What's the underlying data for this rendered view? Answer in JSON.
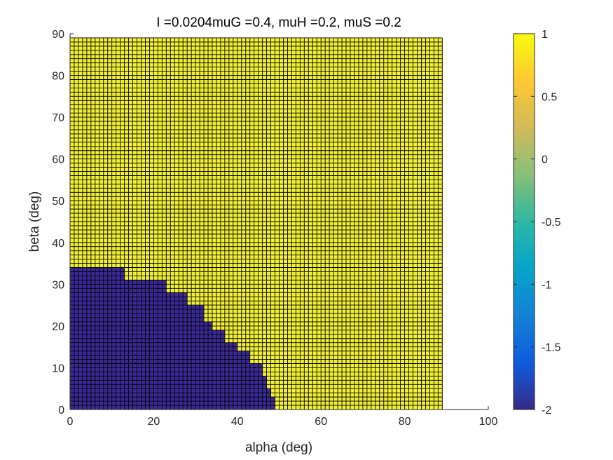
{
  "chart_data": {
    "type": "heatmap",
    "title": "I =0.0204muG =0.4, muH =0.2, muS =0.2",
    "xlabel": "alpha (deg)",
    "ylabel": "beta (deg)",
    "xlim": [
      0,
      100
    ],
    "ylim": [
      0,
      90
    ],
    "x_ticks": [
      0,
      20,
      40,
      60,
      80,
      100
    ],
    "y_ticks": [
      0,
      10,
      20,
      30,
      40,
      50,
      60,
      70,
      80,
      90
    ],
    "grid_step": 1,
    "grid_x_range": [
      0,
      89
    ],
    "grid_y_range": [
      0,
      89
    ],
    "colormap": "parula",
    "clim": [
      -2,
      1
    ],
    "colorbar_ticks": [
      1,
      0.5,
      0,
      -0.5,
      -1,
      -1.5,
      -2
    ],
    "values_present": [
      -2,
      1
    ],
    "low_region_description": "value -2 where alpha < boundary(beta); value 1 elsewhere",
    "boundary": [
      {
        "beta_from": 0,
        "beta_to": 3,
        "alpha": 49
      },
      {
        "beta_from": 3,
        "beta_to": 5,
        "alpha": 48
      },
      {
        "beta_from": 5,
        "beta_to": 8,
        "alpha": 47
      },
      {
        "beta_from": 8,
        "beta_to": 11,
        "alpha": 46
      },
      {
        "beta_from": 11,
        "beta_to": 14,
        "alpha": 43
      },
      {
        "beta_from": 14,
        "beta_to": 16,
        "alpha": 40
      },
      {
        "beta_from": 16,
        "beta_to": 19,
        "alpha": 37
      },
      {
        "beta_from": 19,
        "beta_to": 21,
        "alpha": 34
      },
      {
        "beta_from": 21,
        "beta_to": 25,
        "alpha": 32
      },
      {
        "beta_from": 25,
        "beta_to": 28,
        "alpha": 28
      },
      {
        "beta_from": 28,
        "beta_to": 31,
        "alpha": 23
      },
      {
        "beta_from": 31,
        "beta_to": 34,
        "alpha": 13
      },
      {
        "beta_from": 34,
        "beta_to": 89,
        "alpha": 0
      }
    ],
    "colors": {
      "high": "#f2f035",
      "low": "#3a2a97",
      "grid_line": "#000000"
    }
  }
}
